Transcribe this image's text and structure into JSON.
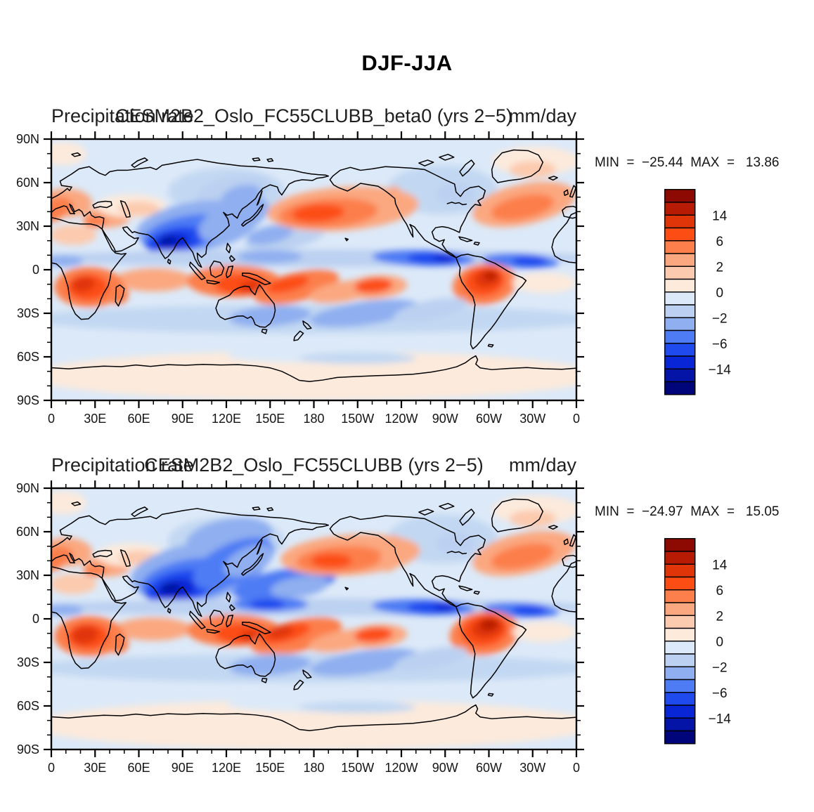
{
  "main_title": "DJF-JJA",
  "chart_data": {
    "type": "filled_contour_map",
    "figure_title": "DJF-JJA",
    "variable": "Precipitation rate",
    "units": "mm/day",
    "projection": "equirectangular, longitude 0E through 180 to 0W, latitude 90N to 90S",
    "axes": {
      "x_tick_labels": [
        "0",
        "30E",
        "60E",
        "90E",
        "120E",
        "150E",
        "180",
        "150W",
        "120W",
        "90W",
        "60W",
        "30W",
        "0"
      ],
      "y_tick_labels": [
        "90N",
        "60N",
        "30N",
        "0",
        "30S",
        "60S",
        "90S"
      ],
      "x_major_interval_deg": 30,
      "x_minor_interval_deg": 10,
      "y_major_interval_deg": 30,
      "y_minor_interval_deg": 10
    },
    "colorbar": {
      "orientation": "vertical",
      "tick_labels": [
        "14",
        "6",
        "2",
        "0",
        "−2",
        "−6",
        "−14"
      ],
      "labeled_boundary_indices": [
        2,
        4,
        6,
        8,
        10,
        12,
        14
      ],
      "colors": [
        "#8C0A02",
        "#B81B04",
        "#E03508",
        "#FC4E14",
        "#FC7F4C",
        "#FBA880",
        "#FCCAAE",
        "#FDEADA",
        "#DCE9F8",
        "#BCD1F1",
        "#8FAFF0",
        "#4E7CF4",
        "#1E4AEE",
        "#0826D6",
        "#0314A6",
        "#00067A"
      ]
    },
    "base_color": "#DCE9F8",
    "features_format": "[lon_deg_0_360, lat_deg(+N/−S), rx_deg, ry_deg, rotation_deg, fill_color]",
    "panels": [
      {
        "title_left": "Precipitation rate",
        "title_center": "CESM2B2_Oslo_FC55CLUBB_beta0 (yrs 2−5)",
        "title_right": "mm/day",
        "stats_label": "MIN  =  −25.44  MAX  =   13.86",
        "min": -25.44,
        "max": 13.86,
        "features": [
          [
            8,
            80,
            16,
            8,
            0,
            "#FCEADC"
          ],
          [
            332,
            75,
            30,
            10,
            0,
            "#FCEADC"
          ],
          [
            330,
            69,
            16,
            6,
            0,
            "#FCCAAE"
          ],
          [
            120,
            54,
            40,
            16,
            0,
            "#C2D8F2"
          ],
          [
            125,
            54,
            26,
            11,
            -10,
            "#BCD1F1"
          ],
          [
            130,
            51,
            14,
            7,
            -15,
            "#8FAFF0"
          ],
          [
            10,
            46,
            18,
            10,
            0,
            "#FBA880"
          ],
          [
            6,
            44,
            9,
            6,
            0,
            "#FC7F4C"
          ],
          [
            0,
            38,
            8,
            5,
            0,
            "#FC7F4C"
          ],
          [
            38,
            36,
            16,
            7,
            0,
            "#FBA880"
          ],
          [
            30,
            33,
            8,
            4,
            0,
            "#FC7F4C"
          ],
          [
            55,
            44,
            24,
            8,
            0,
            "#FCEADC"
          ],
          [
            60,
            42,
            14,
            5,
            0,
            "#FCCAAE"
          ],
          [
            15,
            24,
            16,
            7,
            0,
            "#FCCAAE"
          ],
          [
            268,
            55,
            38,
            17,
            0,
            "#C2D8F2"
          ],
          [
            277,
            52,
            14,
            8,
            0,
            "#BCD1F1"
          ],
          [
            100,
            30,
            42,
            17,
            -8,
            "#8FAFF0"
          ],
          [
            92,
            25,
            30,
            12,
            -12,
            "#4E7CF4"
          ],
          [
            85,
            20,
            20,
            9,
            -12,
            "#1E4AEE"
          ],
          [
            83,
            19,
            12,
            6,
            -12,
            "#0826D6"
          ],
          [
            80,
            20,
            6,
            3.5,
            0,
            "#0314A6"
          ],
          [
            125,
            35,
            26,
            12,
            -25,
            "#8FAFF0"
          ],
          [
            160,
            22,
            28,
            8,
            -10,
            "#BCD1F1"
          ],
          [
            150,
            24,
            16,
            6,
            -12,
            "#8FAFF0"
          ],
          [
            200,
            42,
            52,
            15,
            -4,
            "#FBA880"
          ],
          [
            190,
            39,
            34,
            10,
            -4,
            "#FC7F4C"
          ],
          [
            183,
            39,
            18,
            6,
            -4,
            "#FC4E14"
          ],
          [
            233,
            45,
            7,
            13,
            15,
            "#FBA880"
          ],
          [
            324,
            45,
            36,
            14,
            -12,
            "#FBA880"
          ],
          [
            323,
            43,
            22,
            8,
            -12,
            "#FC7F4C"
          ],
          [
            180,
            8,
            195,
            6,
            0,
            "#BCD1F1"
          ],
          [
            255,
            8,
            35,
            5.5,
            2,
            "#4E7CF4"
          ],
          [
            262,
            8,
            18,
            4,
            0,
            "#1E4AEE"
          ],
          [
            270,
            8,
            8,
            3,
            0,
            "#0826D6"
          ],
          [
            322,
            6,
            26,
            5,
            3,
            "#4E7CF4"
          ],
          [
            328,
            6,
            12,
            3.5,
            0,
            "#1E4AEE"
          ],
          [
            8,
            6,
            14,
            4,
            0,
            "#8FAFF0"
          ],
          [
            150,
            9,
            22,
            4.5,
            0,
            "#8FAFF0"
          ],
          [
            70,
            -7,
            26,
            8,
            0,
            "#FBA880"
          ],
          [
            26,
            -12,
            24,
            14,
            0,
            "#FC7F4C"
          ],
          [
            25,
            -12,
            14,
            9,
            0,
            "#FC4E14"
          ],
          [
            22,
            -10,
            8,
            5,
            -10,
            "#E03508"
          ],
          [
            46,
            -17,
            7,
            7,
            0,
            "#FC7F4C"
          ],
          [
            125,
            -8,
            32,
            11,
            0,
            "#FC7F4C"
          ],
          [
            130,
            -10,
            18,
            7,
            0,
            "#FC4E14"
          ],
          [
            138,
            -12,
            9,
            4,
            0,
            "#E03508"
          ],
          [
            168,
            -12,
            30,
            10,
            -14,
            "#FC7F4C"
          ],
          [
            162,
            -10,
            15,
            5,
            -14,
            "#FC4E14"
          ],
          [
            200,
            -15,
            24,
            7,
            -10,
            "#FBA880"
          ],
          [
            222,
            -12,
            22,
            8,
            -5,
            "#FBA880"
          ],
          [
            221,
            -11,
            13,
            5,
            -5,
            "#FC4E14"
          ],
          [
            297,
            -10,
            22,
            14,
            -8,
            "#FC7F4C"
          ],
          [
            297,
            -8,
            14,
            10,
            -10,
            "#FC4E14"
          ],
          [
            299,
            -6,
            9,
            6,
            -12,
            "#E03508"
          ],
          [
            301,
            -4,
            4.5,
            3,
            0,
            "#B81B04"
          ],
          [
            338,
            -9,
            22,
            7,
            0,
            "#FCEADC"
          ],
          [
            180,
            -34,
            195,
            10,
            0,
            "#C2D8F2"
          ],
          [
            150,
            -32,
            28,
            7,
            -4,
            "#8FAFF0"
          ],
          [
            215,
            -30,
            38,
            8,
            -8,
            "#8FAFF0"
          ],
          [
            260,
            -28,
            26,
            7,
            -12,
            "#BCD1F1"
          ],
          [
            90,
            -37,
            30,
            6,
            0,
            "#C2D8F2"
          ],
          [
            180,
            -73,
            195,
            17,
            0,
            "#FCEADC"
          ],
          [
            180,
            -59,
            60,
            5,
            0,
            "#DCE9F8"
          ],
          [
            210,
            -61,
            40,
            4,
            0,
            "#C2D8F2"
          ]
        ]
      },
      {
        "title_left": "Precipitation rate",
        "title_center": "CESM2B2_Oslo_FC55CLUBB (yrs 2−5)",
        "title_right": "mm/day",
        "stats_label": "MIN  =  −24.97  MAX  =   15.05",
        "min": -24.97,
        "max": 15.05,
        "features": [
          [
            8,
            80,
            16,
            8,
            0,
            "#FCEADC"
          ],
          [
            332,
            75,
            30,
            10,
            0,
            "#FCEADC"
          ],
          [
            330,
            69,
            16,
            6,
            0,
            "#FCCAAE"
          ],
          [
            120,
            54,
            40,
            16,
            0,
            "#C2D8F2"
          ],
          [
            122,
            56,
            30,
            13,
            -10,
            "#8FAFF0"
          ],
          [
            10,
            46,
            18,
            10,
            0,
            "#FBA880"
          ],
          [
            6,
            44,
            9,
            6,
            0,
            "#FC7F4C"
          ],
          [
            0,
            38,
            8,
            5,
            0,
            "#FC7F4C"
          ],
          [
            38,
            36,
            16,
            7,
            0,
            "#FBA880"
          ],
          [
            30,
            33,
            8,
            4,
            0,
            "#FC7F4C"
          ],
          [
            55,
            44,
            24,
            8,
            0,
            "#FCEADC"
          ],
          [
            60,
            42,
            14,
            5,
            0,
            "#FCCAAE"
          ],
          [
            15,
            24,
            16,
            7,
            0,
            "#FCCAAE"
          ],
          [
            268,
            55,
            38,
            17,
            0,
            "#C2D8F2"
          ],
          [
            277,
            52,
            14,
            8,
            0,
            "#BCD1F1"
          ],
          [
            100,
            32,
            46,
            20,
            -8,
            "#8FAFF0"
          ],
          [
            95,
            27,
            34,
            14,
            -10,
            "#4E7CF4"
          ],
          [
            88,
            22,
            24,
            11,
            -12,
            "#1E4AEE"
          ],
          [
            85,
            20,
            14,
            7,
            -12,
            "#0826D6"
          ],
          [
            82,
            21,
            7,
            4,
            0,
            "#0314A6"
          ],
          [
            125,
            38,
            30,
            14,
            -25,
            "#4E7CF4"
          ],
          [
            135,
            40,
            18,
            9,
            -25,
            "#8FAFF0"
          ],
          [
            160,
            24,
            36,
            10,
            -10,
            "#4E7CF4"
          ],
          [
            170,
            22,
            20,
            7,
            -8,
            "#8FAFF0"
          ],
          [
            205,
            44,
            48,
            14,
            -4,
            "#FBA880"
          ],
          [
            198,
            41,
            30,
            9,
            -4,
            "#FC7F4C"
          ],
          [
            192,
            40,
            14,
            5,
            0,
            "#FC4E14"
          ],
          [
            233,
            45,
            7,
            13,
            15,
            "#FBA880"
          ],
          [
            324,
            45,
            36,
            14,
            -12,
            "#FBA880"
          ],
          [
            323,
            43,
            22,
            8,
            -12,
            "#FC7F4C"
          ],
          [
            180,
            8,
            195,
            6,
            0,
            "#BCD1F1"
          ],
          [
            255,
            8,
            35,
            5.5,
            2,
            "#4E7CF4"
          ],
          [
            262,
            8,
            18,
            4,
            0,
            "#1E4AEE"
          ],
          [
            270,
            8,
            8,
            3,
            0,
            "#0826D6"
          ],
          [
            322,
            6,
            26,
            5,
            3,
            "#4E7CF4"
          ],
          [
            328,
            6,
            12,
            3.5,
            0,
            "#1E4AEE"
          ],
          [
            8,
            6,
            14,
            4,
            0,
            "#8FAFF0"
          ],
          [
            150,
            10,
            26,
            5,
            0,
            "#4E7CF4"
          ],
          [
            148,
            10,
            12,
            3.5,
            0,
            "#1E4AEE"
          ],
          [
            70,
            -7,
            26,
            8,
            0,
            "#FBA880"
          ],
          [
            26,
            -12,
            24,
            14,
            0,
            "#FC7F4C"
          ],
          [
            25,
            -12,
            14,
            9,
            0,
            "#FC4E14"
          ],
          [
            23,
            -11,
            9,
            6,
            -10,
            "#E03508"
          ],
          [
            46,
            -17,
            7,
            7,
            0,
            "#FC7F4C"
          ],
          [
            125,
            -8,
            32,
            11,
            0,
            "#FC7F4C"
          ],
          [
            130,
            -10,
            18,
            7,
            0,
            "#FC4E14"
          ],
          [
            138,
            -12,
            9,
            4,
            0,
            "#E03508"
          ],
          [
            168,
            -12,
            32,
            11,
            -14,
            "#FC7F4C"
          ],
          [
            160,
            -10,
            18,
            6,
            -14,
            "#FC4E14"
          ],
          [
            157,
            -9,
            9,
            4,
            -14,
            "#E03508"
          ],
          [
            200,
            -15,
            24,
            7,
            -10,
            "#FBA880"
          ],
          [
            222,
            -12,
            22,
            8,
            -5,
            "#FBA880"
          ],
          [
            221,
            -11,
            13,
            5,
            -5,
            "#FC4E14"
          ],
          [
            297,
            -10,
            24,
            15,
            -8,
            "#FC7F4C"
          ],
          [
            297,
            -8,
            16,
            11,
            -10,
            "#FC4E14"
          ],
          [
            299,
            -6,
            11,
            7,
            -12,
            "#E03508"
          ],
          [
            300,
            -4,
            6,
            4,
            -10,
            "#B81B04"
          ],
          [
            338,
            -9,
            22,
            7,
            0,
            "#FCEADC"
          ],
          [
            180,
            -34,
            195,
            10,
            0,
            "#C2D8F2"
          ],
          [
            150,
            -32,
            28,
            7,
            -4,
            "#8FAFF0"
          ],
          [
            215,
            -30,
            38,
            8,
            -8,
            "#8FAFF0"
          ],
          [
            260,
            -28,
            26,
            7,
            -12,
            "#BCD1F1"
          ],
          [
            90,
            -37,
            30,
            6,
            0,
            "#C2D8F2"
          ],
          [
            180,
            -73,
            195,
            17,
            0,
            "#FCEADC"
          ],
          [
            180,
            -59,
            60,
            5,
            0,
            "#DCE9F8"
          ],
          [
            210,
            -61,
            40,
            4,
            0,
            "#C2D8F2"
          ]
        ]
      }
    ]
  }
}
